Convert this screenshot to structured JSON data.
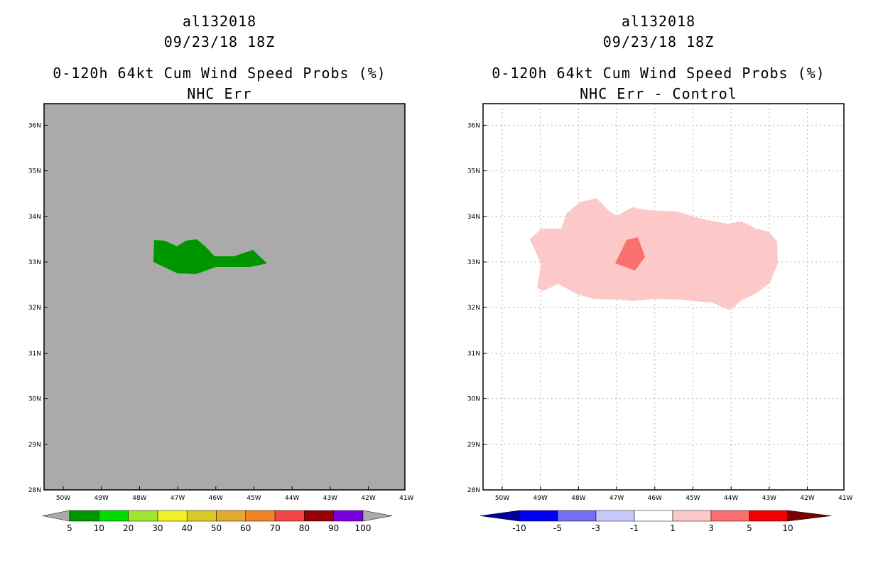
{
  "left": {
    "title_line1": "al132018",
    "title_line2": "09/23/18 18Z",
    "title_line3": "0-120h 64kt Cum Wind Speed Probs (%)",
    "title_line4": "NHC Err",
    "background_color": "#aaaaaa",
    "legend": {
      "colors": [
        "#009600",
        "#00dc00",
        "#a0e632",
        "#f0f028",
        "#dcc828",
        "#e1aa32",
        "#f08228",
        "#f04646",
        "#960000",
        "#7800dc"
      ],
      "labels": [
        "5",
        "10",
        "20",
        "30",
        "40",
        "50",
        "60",
        "70",
        "80",
        "90",
        "100"
      ],
      "end_arrow_color": "#aaaaaa"
    }
  },
  "right": {
    "title_line1": "al132018",
    "title_line2": "09/23/18 18Z",
    "title_line3": "0-120h 64kt Cum Wind Speed Probs (%)",
    "title_line4": "NHC Err - Control",
    "background_color": "#ffffff",
    "legend": {
      "colors": [
        "#0000f0",
        "#7070f0",
        "#c8c8f8",
        "#ffffff",
        "#fcc8c8",
        "#f87070",
        "#f00000"
      ],
      "labels": [
        "-10",
        "-5",
        "-3",
        "-1",
        "1",
        "3",
        "5",
        "10"
      ],
      "left_arrow_color": "#00009a",
      "right_arrow_color": "#7a0000"
    }
  },
  "axes": {
    "lon_labels": [
      "50W",
      "49W",
      "48W",
      "47W",
      "46W",
      "45W",
      "44W",
      "43W",
      "42W",
      "41W"
    ],
    "lat_labels": [
      "28N",
      "29N",
      "30N",
      "31N",
      "32N",
      "33N",
      "34N",
      "35N",
      "36N"
    ]
  }
}
